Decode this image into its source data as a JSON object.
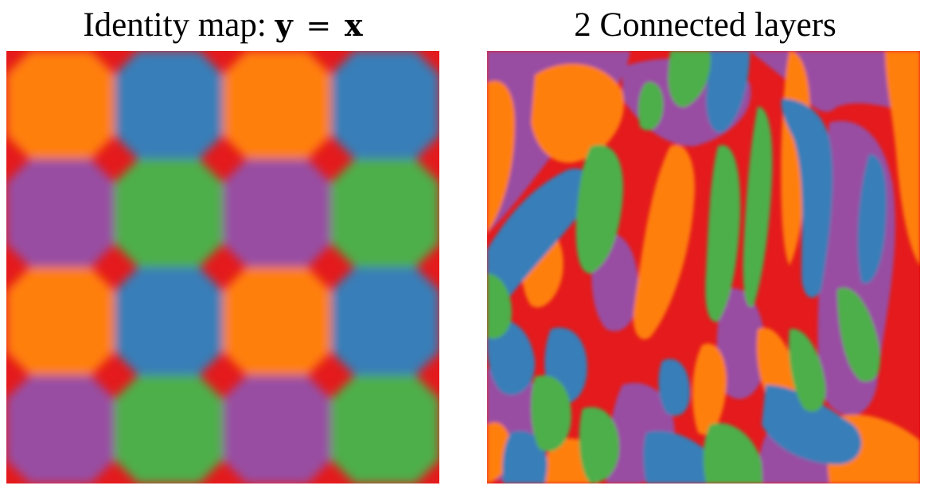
{
  "panels": [
    {
      "title_prefix": "Identity map:",
      "title_var_y": "y",
      "title_eq": "=",
      "title_var_x": "x"
    },
    {
      "title": "2 Connected layers"
    }
  ],
  "colors": {
    "orange": "#ff7f0e",
    "blue": "#377eb8",
    "purple": "#984ea3",
    "green": "#4daf4a",
    "red": "#e41a1c"
  },
  "identity_grid": [
    [
      "orange",
      "blue",
      "orange",
      "blue"
    ],
    [
      "purple",
      "green",
      "purple",
      "green"
    ],
    [
      "orange",
      "blue",
      "orange",
      "blue"
    ],
    [
      "purple",
      "green",
      "purple",
      "green"
    ]
  ]
}
